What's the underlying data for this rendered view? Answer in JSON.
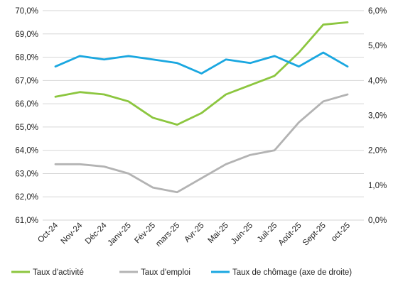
{
  "chart_data": {
    "type": "line",
    "title": "",
    "xlabel": "",
    "ylabel": "",
    "categories": [
      "Oct-24",
      "Nov-24",
      "Déc-24",
      "Janv-25",
      "Fév-25",
      "mars-25",
      "Avr-25",
      "Mai-25",
      "Juin-25",
      "Juil-25",
      "Août-25",
      "Sept-25",
      "oct-25"
    ],
    "ylim": [
      61,
      70
    ],
    "yticks": [
      "70,0%",
      "69,0%",
      "68,0%",
      "67,0%",
      "66,0%",
      "65,0%",
      "64,0%",
      "63,0%",
      "62,0%",
      "61,0%"
    ],
    "y2lim": [
      0,
      6
    ],
    "y2ticks": [
      "6,0%",
      "5,0%",
      "4,0%",
      "3,0%",
      "2,0%",
      "1,0%",
      "0,0%"
    ],
    "grid": true,
    "legend_position": "bottom",
    "series": [
      {
        "name": "Taux d'activité",
        "axis": "left",
        "color": "#8cc63f",
        "values": [
          66.3,
          66.5,
          66.4,
          66.1,
          65.4,
          65.1,
          65.6,
          66.4,
          66.8,
          67.2,
          68.2,
          69.4,
          69.5
        ]
      },
      {
        "name": "Taux d'emploi",
        "axis": "left",
        "color": "#b3b3b3",
        "values": [
          63.4,
          63.4,
          63.3,
          63.0,
          62.4,
          62.2,
          62.8,
          63.4,
          63.8,
          64.0,
          65.2,
          66.1,
          66.4
        ]
      },
      {
        "name": "Taux de chômage (axe de droite)",
        "axis": "right",
        "color": "#1aa7e0",
        "values": [
          4.4,
          4.7,
          4.6,
          4.7,
          4.6,
          4.5,
          4.2,
          4.6,
          4.5,
          4.7,
          4.4,
          4.8,
          4.4
        ]
      }
    ]
  }
}
